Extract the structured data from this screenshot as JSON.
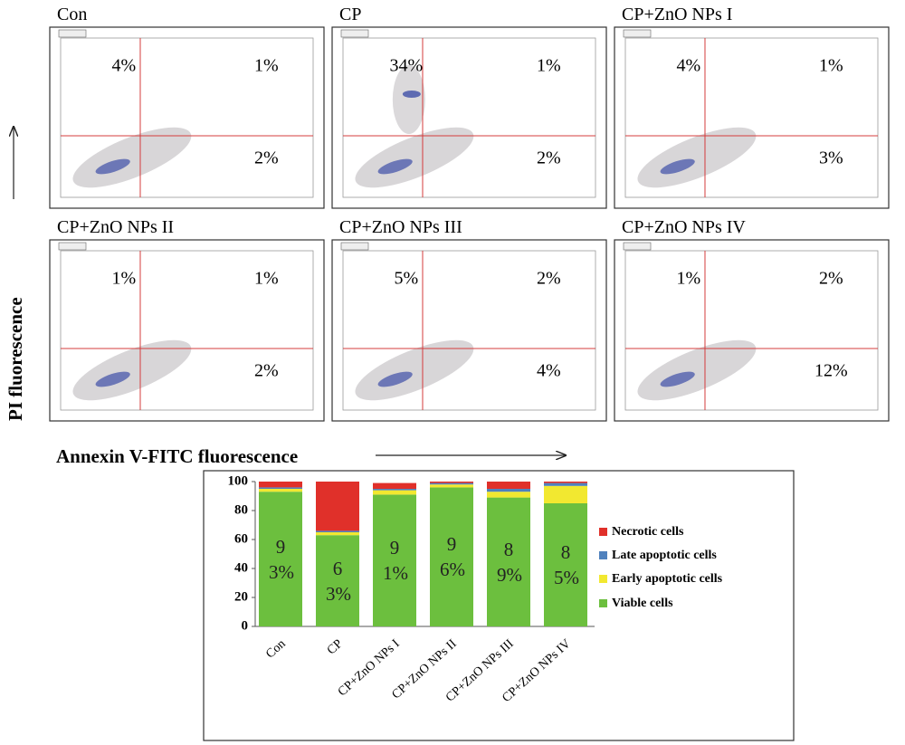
{
  "figure": {
    "y_axis_label": "PI fluorescence",
    "x_axis_label": "Annexin V-FITC fluorescence"
  },
  "chart_data": [
    {
      "type": "quadrant",
      "title": "Con",
      "values": [
        4,
        1,
        2
      ],
      "value_labels": [
        "4%",
        "1%",
        "2%"
      ]
    },
    {
      "type": "quadrant",
      "title": "CP",
      "values": [
        34,
        1,
        2
      ],
      "value_labels": [
        "34%",
        "1%",
        "2%"
      ]
    },
    {
      "type": "quadrant",
      "title": "CP+ZnO NPs I",
      "values": [
        4,
        1,
        3
      ],
      "value_labels": [
        "4%",
        "1%",
        "3%"
      ]
    },
    {
      "type": "quadrant",
      "title": "CP+ZnO NPs II",
      "values": [
        1,
        1,
        2
      ],
      "value_labels": [
        "1%",
        "1%",
        "2%"
      ]
    },
    {
      "type": "quadrant",
      "title": "CP+ZnO NPs III",
      "values": [
        5,
        2,
        4
      ],
      "value_labels": [
        "5%",
        "2%",
        "4%"
      ]
    },
    {
      "type": "quadrant",
      "title": "CP+ZnO NPs IV",
      "values": [
        1,
        2,
        12
      ],
      "value_labels": [
        "1%",
        "2%",
        "12%"
      ]
    },
    {
      "type": "bar",
      "stacked": true,
      "legend": "right",
      "categories": [
        "Con",
        "CP",
        "CP+ZnO NPs I",
        "CP+ZnO NPs II",
        "CP+ZnO NPs III",
        "CP+ZnO NPs IV"
      ],
      "series": [
        {
          "name": "Viable cells",
          "color": "#6cbf3e",
          "values": [
            93,
            63,
            91,
            96,
            89,
            85
          ],
          "value_labels": [
            "93%",
            "63%",
            "91%",
            "96%",
            "89%",
            "85%"
          ]
        },
        {
          "name": "Early apoptotic cells",
          "color": "#f2e830",
          "values": [
            2,
            2,
            3,
            2,
            4,
            12
          ]
        },
        {
          "name": "Late apoptotic cells",
          "color": "#4f81bd",
          "values": [
            1,
            1,
            1,
            1,
            2,
            2
          ]
        },
        {
          "name": "Necrotic cells",
          "color": "#e0302a",
          "values": [
            4,
            34,
            4,
            1,
            5,
            1
          ]
        }
      ],
      "ylim": [
        0,
        100
      ],
      "yticks": [
        0,
        20,
        40,
        60,
        80,
        100
      ]
    }
  ]
}
